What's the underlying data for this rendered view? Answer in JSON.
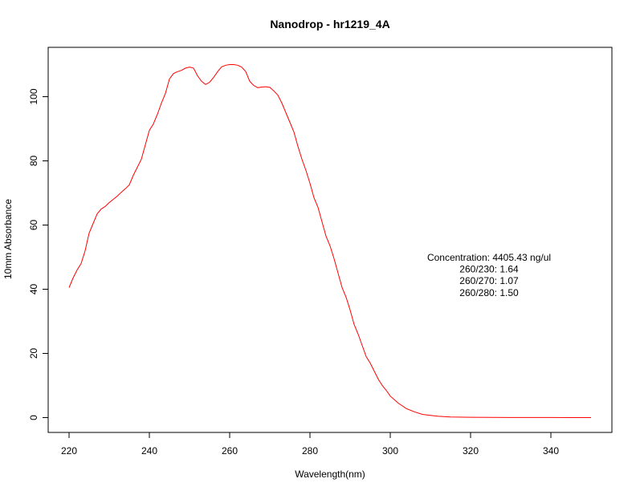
{
  "chart_data": {
    "type": "line",
    "title": "Nanodrop - hr1219_4A",
    "xlabel": "Wavelength(nm)",
    "ylabel": "10mm Absorbance",
    "xlim": [
      220,
      350
    ],
    "ylim": [
      0,
      110
    ],
    "x_ticks": [
      220,
      240,
      260,
      280,
      300,
      320,
      340
    ],
    "y_ticks": [
      0,
      20,
      40,
      60,
      80,
      100
    ],
    "grid": false,
    "line_color": "#ff0000",
    "series": [
      {
        "x": [
          220,
          221,
          222,
          223,
          224,
          225,
          226,
          227,
          228,
          229,
          230,
          231,
          232,
          233,
          234,
          235,
          236,
          237,
          238,
          239,
          240,
          241,
          242,
          243,
          244,
          245,
          246,
          247,
          248,
          249,
          250,
          251,
          252,
          253,
          254,
          255,
          256,
          257,
          258,
          259,
          260,
          261,
          262,
          263,
          264,
          265,
          266,
          267,
          268,
          269,
          270,
          271,
          272,
          273,
          274,
          275,
          276,
          277,
          278,
          279,
          280,
          281,
          282,
          283,
          284,
          285,
          286,
          287,
          288,
          289,
          290,
          291,
          292,
          293,
          294,
          295,
          296,
          297,
          298,
          299,
          300,
          302,
          304,
          306,
          308,
          310,
          312,
          315,
          320,
          325,
          330,
          335,
          340,
          345,
          350
        ],
        "values": [
          40.5,
          43.5,
          46.0,
          48.0,
          52.0,
          57.5,
          60.5,
          63.5,
          65.0,
          65.8,
          67.0,
          68.0,
          69.0,
          70.2,
          71.3,
          72.5,
          75.5,
          78.0,
          80.5,
          85.0,
          89.5,
          91.5,
          94.5,
          98.0,
          101.0,
          105.5,
          107.2,
          107.8,
          108.2,
          108.9,
          109.2,
          108.9,
          106.5,
          104.8,
          103.8,
          104.5,
          106.0,
          107.8,
          109.3,
          109.8,
          110.0,
          110.0,
          109.8,
          109.2,
          107.8,
          104.8,
          103.5,
          102.8,
          103.0,
          103.1,
          102.9,
          101.8,
          100.5,
          98.0,
          95.0,
          92.0,
          89.0,
          84.5,
          80.5,
          77.0,
          73.0,
          68.5,
          65.5,
          61.0,
          56.5,
          53.5,
          49.5,
          45.0,
          40.5,
          37.5,
          33.5,
          29.0,
          26.0,
          22.5,
          19.0,
          17.0,
          14.5,
          12.0,
          10.0,
          8.5,
          6.7,
          4.5,
          2.8,
          1.8,
          1.0,
          0.7,
          0.4,
          0.2,
          0.1,
          0.05,
          0.03,
          0.02,
          0.02,
          0.01,
          0.01
        ]
      }
    ],
    "annotations": [
      "Concentration: 4405.43 ng/ul",
      "260/230: 1.64",
      "260/270: 1.07",
      "260/280: 1.50"
    ]
  }
}
